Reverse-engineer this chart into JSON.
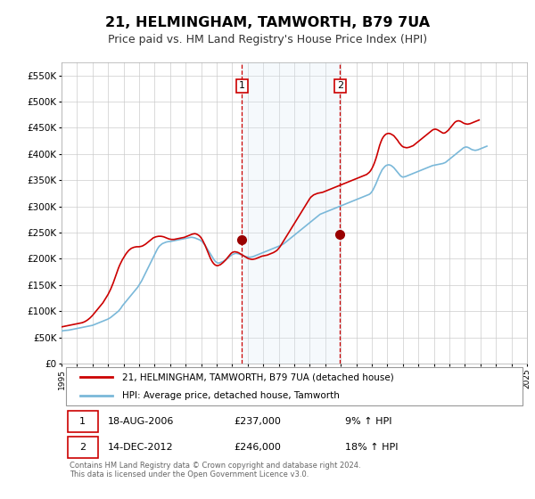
{
  "title": "21, HELMINGHAM, TAMWORTH, B79 7UA",
  "subtitle": "Price paid vs. HM Land Registry's House Price Index (HPI)",
  "background_color": "#ffffff",
  "plot_bg_color": "#ffffff",
  "grid_color": "#cccccc",
  "hpi_line_color": "#7ab8d9",
  "price_line_color": "#cc0000",
  "sale_marker_color": "#990000",
  "vline_color": "#cc0000",
  "vspan_color": "#daeaf5",
  "ylim": [
    0,
    575000
  ],
  "yticks": [
    0,
    50000,
    100000,
    150000,
    200000,
    250000,
    300000,
    350000,
    400000,
    450000,
    500000,
    550000
  ],
  "ytick_labels": [
    "£0",
    "£50K",
    "£100K",
    "£150K",
    "£200K",
    "£250K",
    "£300K",
    "£350K",
    "£400K",
    "£450K",
    "£500K",
    "£550K"
  ],
  "sales": [
    {
      "date_num": 2006.63,
      "price": 237000,
      "label": "1"
    },
    {
      "date_num": 2012.95,
      "price": 246000,
      "label": "2"
    }
  ],
  "sale1_info": [
    "1",
    "18-AUG-2006",
    "£237,000",
    "9% ↑ HPI"
  ],
  "sale2_info": [
    "2",
    "14-DEC-2012",
    "£246,000",
    "18% ↑ HPI"
  ],
  "legend_line1": "21, HELMINGHAM, TAMWORTH, B79 7UA (detached house)",
  "legend_line2": "HPI: Average price, detached house, Tamworth",
  "footer": "Contains HM Land Registry data © Crown copyright and database right 2024.\nThis data is licensed under the Open Government Licence v3.0.",
  "hpi_data_monthly": {
    "start_year": 1995.0,
    "step": 0.08333,
    "values": [
      62000,
      62500,
      63000,
      63200,
      63500,
      63700,
      64000,
      64500,
      65000,
      65500,
      66000,
      66500,
      67000,
      67500,
      68000,
      68500,
      69000,
      69500,
      70000,
      70500,
      71000,
      71500,
      72000,
      72500,
      73000,
      74000,
      75000,
      76000,
      77000,
      78000,
      79000,
      80000,
      81000,
      82000,
      83000,
      84000,
      85000,
      86500,
      88000,
      90000,
      92000,
      94000,
      96000,
      98000,
      100000,
      103000,
      106000,
      110000,
      113000,
      116000,
      119000,
      122000,
      125000,
      128000,
      131000,
      134000,
      137000,
      140000,
      143000,
      146000,
      150000,
      154000,
      158000,
      163000,
      168000,
      173000,
      178000,
      183000,
      188000,
      193000,
      198000,
      203000,
      208000,
      213000,
      218000,
      222000,
      225000,
      227000,
      229000,
      230000,
      231000,
      232000,
      232500,
      233000,
      233000,
      233500,
      234000,
      234500,
      235000,
      235500,
      236000,
      236500,
      237000,
      237500,
      238000,
      238500,
      239000,
      239500,
      240000,
      240500,
      241000,
      241000,
      240500,
      240000,
      239000,
      238000,
      237000,
      236000,
      234000,
      232000,
      229000,
      226000,
      222000,
      218000,
      214000,
      210000,
      206000,
      202000,
      198000,
      195000,
      193000,
      192000,
      192000,
      193000,
      194000,
      195000,
      196500,
      198000,
      200000,
      202000,
      204000,
      206000,
      208000,
      209000,
      210000,
      210500,
      210000,
      209500,
      208500,
      207500,
      206500,
      205500,
      204500,
      204000,
      203500,
      203000,
      203000,
      203500,
      204000,
      205000,
      206000,
      207000,
      208000,
      209000,
      210000,
      211000,
      212000,
      213000,
      214000,
      215000,
      216000,
      217000,
      218000,
      219000,
      220000,
      221000,
      222000,
      223000,
      224000,
      225000,
      226000,
      227500,
      229000,
      231000,
      233000,
      235000,
      237000,
      239000,
      241000,
      243000,
      245000,
      247000,
      249000,
      251000,
      253000,
      255000,
      257000,
      259000,
      261000,
      263000,
      265000,
      267000,
      269000,
      271000,
      273000,
      275000,
      277000,
      279000,
      281000,
      283000,
      285000,
      286000,
      287000,
      288000,
      289000,
      290000,
      291000,
      292000,
      293000,
      294000,
      295000,
      296000,
      297000,
      298000,
      299000,
      300000,
      301000,
      302000,
      303000,
      304000,
      305000,
      306000,
      307000,
      308000,
      309000,
      310000,
      311000,
      312000,
      313000,
      314000,
      315000,
      316000,
      317000,
      318000,
      319000,
      320000,
      321000,
      322000,
      323000,
      325000,
      328000,
      332000,
      337000,
      342000,
      348000,
      354000,
      360000,
      365000,
      370000,
      373000,
      376000,
      378000,
      379000,
      379500,
      379000,
      378000,
      376000,
      374000,
      371000,
      368000,
      365000,
      362000,
      359000,
      357000,
      356000,
      356500,
      357000,
      358000,
      359000,
      360000,
      361000,
      362000,
      363000,
      364000,
      365000,
      366000,
      367000,
      368000,
      369000,
      370000,
      371000,
      372000,
      373000,
      374000,
      375000,
      376000,
      377000,
      378000,
      378500,
      379000,
      379500,
      380000,
      380500,
      381000,
      381500,
      382000,
      383000,
      384000,
      386000,
      388000,
      390000,
      392000,
      394000,
      396000,
      398000,
      400000,
      402000,
      404000,
      406000,
      408000,
      410000,
      412000,
      413000,
      413500,
      413000,
      412000,
      410500,
      409000,
      408000,
      407500,
      407000,
      407500,
      408000,
      409000,
      410000,
      411000,
      412000,
      413000,
      414000,
      415000
    ]
  },
  "price_data_monthly": {
    "start_year": 1995.0,
    "step": 0.08333,
    "values": [
      70000,
      70500,
      71000,
      71500,
      72000,
      72500,
      73000,
      73500,
      74000,
      74500,
      75000,
      75500,
      76000,
      76500,
      77000,
      77500,
      78000,
      79000,
      80000,
      81500,
      83000,
      85000,
      87000,
      89500,
      92000,
      95000,
      98000,
      101000,
      104000,
      107000,
      110000,
      113000,
      116000,
      120000,
      124000,
      128000,
      132000,
      137000,
      142000,
      148000,
      154000,
      161000,
      168000,
      175000,
      182000,
      188000,
      193000,
      198000,
      202000,
      206000,
      210000,
      213000,
      216000,
      218000,
      220000,
      221000,
      222000,
      222500,
      223000,
      223000,
      223000,
      223500,
      224000,
      225000,
      226500,
      228000,
      230000,
      232000,
      234000,
      236000,
      238000,
      240000,
      241000,
      242000,
      242500,
      243000,
      243000,
      243000,
      242500,
      242000,
      241000,
      240000,
      239000,
      238000,
      237500,
      237000,
      237000,
      237000,
      237500,
      238000,
      238500,
      239000,
      239500,
      240000,
      240500,
      241000,
      242000,
      243000,
      244000,
      245000,
      246000,
      247000,
      247500,
      248000,
      247500,
      246500,
      245000,
      243000,
      240000,
      236000,
      231000,
      226000,
      220000,
      214000,
      208000,
      202000,
      197000,
      193000,
      190000,
      188000,
      187000,
      187000,
      188000,
      189000,
      191000,
      193000,
      195500,
      198000,
      201000,
      204000,
      207000,
      210000,
      212000,
      213000,
      213500,
      213000,
      212500,
      211500,
      210000,
      208500,
      207000,
      205500,
      204000,
      202500,
      201000,
      200000,
      199500,
      199000,
      199000,
      199500,
      200000,
      201000,
      202000,
      203000,
      204000,
      205000,
      205500,
      206000,
      206500,
      207000,
      208000,
      209000,
      210000,
      211000,
      212000,
      213500,
      215000,
      217000,
      220000,
      223000,
      227000,
      231000,
      235000,
      239000,
      243000,
      247000,
      251000,
      255000,
      259000,
      263000,
      267000,
      271000,
      275000,
      279000,
      283000,
      287000,
      291000,
      295000,
      299000,
      303000,
      307000,
      311000,
      315000,
      318000,
      320000,
      322000,
      323000,
      324000,
      325000,
      325500,
      326000,
      326500,
      327000,
      328000,
      329000,
      330000,
      331000,
      332000,
      333000,
      334000,
      335000,
      336000,
      337000,
      338000,
      339000,
      340000,
      341000,
      342000,
      343000,
      344000,
      345000,
      346000,
      347000,
      348000,
      349000,
      350000,
      351000,
      352000,
      353000,
      354000,
      355000,
      356000,
      357000,
      358000,
      359000,
      360000,
      361000,
      363000,
      365000,
      368000,
      372000,
      377000,
      383000,
      390000,
      398000,
      407000,
      416000,
      423000,
      429000,
      433000,
      436000,
      438000,
      439000,
      439500,
      439000,
      438000,
      436500,
      435000,
      432000,
      429000,
      426000,
      422000,
      419000,
      416000,
      414000,
      413000,
      412500,
      412000,
      412500,
      413000,
      414000,
      415000,
      416000,
      418000,
      420000,
      422000,
      424000,
      426000,
      428000,
      430000,
      432000,
      434000,
      436000,
      438000,
      440000,
      442000,
      444000,
      446000,
      447000,
      447500,
      447000,
      446000,
      444500,
      443000,
      441500,
      440000,
      440000,
      441000,
      443000,
      445000,
      448000,
      451000,
      454000,
      457000,
      460000,
      462000,
      463000,
      463500,
      463000,
      462000,
      460500,
      459000,
      458000,
      457500,
      457000,
      457500,
      458000,
      459000,
      460000,
      461000,
      462000,
      463000,
      464000,
      465000
    ]
  }
}
